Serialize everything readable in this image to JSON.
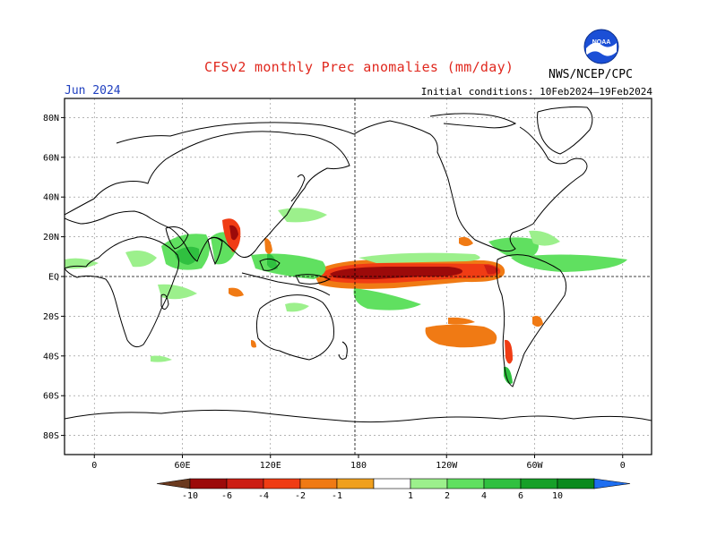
{
  "title": "CFSv2 monthly Prec anomalies (mm/day)",
  "month": "Jun 2024",
  "initial_conditions": "Initial conditions: 10Feb2024–19Feb2024",
  "agency": "NWS/NCEP/CPC",
  "logo_text": "NOAA",
  "lat_ticks": [
    "80N",
    "60N",
    "40N",
    "20N",
    "EQ",
    "20S",
    "40S",
    "60S",
    "80S"
  ],
  "lon_ticks": [
    "0",
    "60E",
    "120E",
    "180",
    "120W",
    "60W",
    "0"
  ],
  "colorbar": {
    "labels": [
      "-10",
      "-6",
      "-4",
      "-2",
      "-1",
      "1",
      "2",
      "4",
      "6",
      "10"
    ],
    "colors": [
      "#6b3a1f",
      "#9c0a0a",
      "#cc1e14",
      "#f03c14",
      "#f07a14",
      "#f0a01e",
      "#ffffff",
      "#9cf08c",
      "#60e060",
      "#30c040",
      "#16a028",
      "#0b8a1e",
      "#1e6ef0"
    ]
  },
  "chart_data": {
    "type": "map",
    "projection": "cylindrical equidistant",
    "variable": "Precipitation anomalies",
    "units": "mm/day",
    "valid_month": "Jun 2024",
    "contour_levels": [
      -10,
      -6,
      -4,
      -2,
      -1,
      1,
      2,
      4,
      6,
      10
    ],
    "lat_range": [
      -90,
      90
    ],
    "lon_range": [
      -20,
      380
    ],
    "grid": true
  }
}
